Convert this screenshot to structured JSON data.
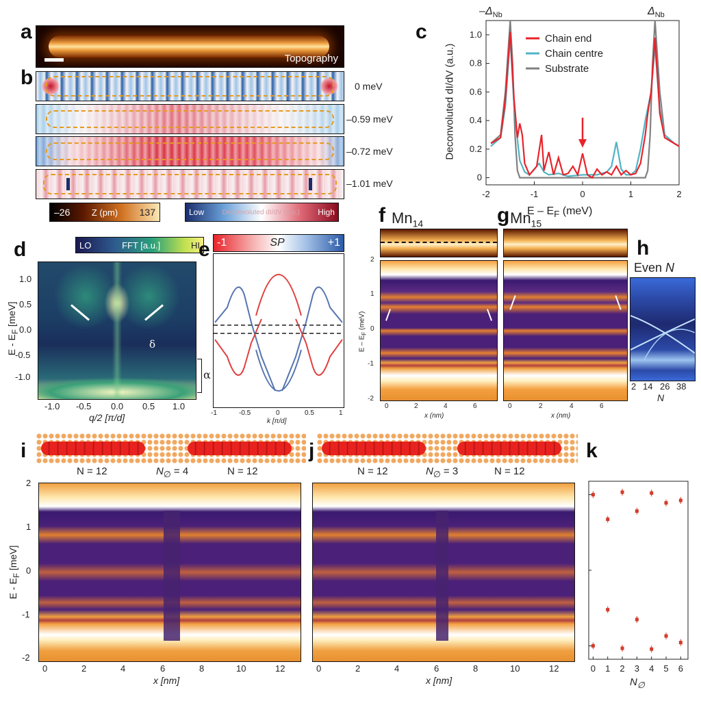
{
  "panels": {
    "a": {
      "label": "a",
      "caption": "Topography"
    },
    "b": {
      "label": "b",
      "energies": [
        "0 meV",
        "–0.59 meV",
        "–0.72 meV",
        "–1.01 meV"
      ]
    },
    "colorbars": {
      "z_min": "–26",
      "z_label": "Z (pm)",
      "z_max": "137",
      "didv_low": "Low",
      "didv_label": "Deconvoluted dI/dV (a.u.)",
      "didv_high": "High"
    },
    "c": {
      "label": "c",
      "ylabel": "Deconvoluted dI/dV (a.u.)",
      "xlabel": "E – E",
      "xlabel_sub": "F",
      "xlabel_unit": " (meV)",
      "gap_minus": "–Δ",
      "gap_plus": "Δ",
      "gap_sub": "Nb"
    },
    "d": {
      "label": "d",
      "cb_lo": "LO",
      "cb_mid": "FFT [a.u.]",
      "cb_hi": "HI",
      "ylabel": "E - E",
      "ylabel_sub": "F",
      "ylabel_unit": " [meV]",
      "xlabel": "q/2 [π/d]",
      "delta": "δ",
      "alpha": "α",
      "yticks": [
        "1.0",
        "0.5",
        "0.0",
        "-0.5",
        "-1.0"
      ],
      "xticks": [
        "-1.0",
        "-0.5",
        "0.0",
        "0.5",
        "1.0"
      ]
    },
    "e": {
      "label": "e",
      "cb_minus": "-1",
      "cb_mid": "SP",
      "cb_plus": "+1",
      "xlabel": "k [π/d]",
      "xticks": [
        "-1",
        "-0.5",
        "0",
        "0.5",
        "1"
      ]
    },
    "f": {
      "label": "f",
      "title": "Mn",
      "title_sub": "14",
      "ylabel": "E – E",
      "ylabel_sub": "F",
      "ylabel_unit": " (meV)",
      "xlabel": "x (nm)",
      "yticks": [
        "2",
        "1",
        "0",
        "-1",
        "-2"
      ],
      "xticks": [
        "0",
        "2",
        "4",
        "6"
      ]
    },
    "g": {
      "label": "g",
      "title": "Mn",
      "title_sub": "15",
      "xlabel": "x (nm)",
      "xticks": [
        "0",
        "2",
        "4",
        "6"
      ]
    },
    "h": {
      "label": "h",
      "title": "Even ",
      "title_n": "N",
      "xticks": [
        "2",
        "14",
        "26",
        "38"
      ],
      "xlabel": "N"
    },
    "i": {
      "label": "i",
      "n_left": "N = 12",
      "n_mid": "N",
      "n_mid_sub": "∅",
      "n_mid_val": " = 4",
      "n_right": "N = 12",
      "ylabel": "E - E",
      "ylabel_sub": "F",
      "ylabel_unit": " [meV]",
      "xlabel": "x [nm]",
      "yticks": [
        "2",
        "1",
        "0",
        "-1",
        "-2"
      ],
      "xticks": [
        "0",
        "2",
        "4",
        "6",
        "8",
        "10",
        "12"
      ]
    },
    "j": {
      "label": "j",
      "n_left": "N = 12",
      "n_mid": "N",
      "n_mid_sub": "∅",
      "n_mid_val": " = 3",
      "n_right": "N = 12",
      "xlabel": "x [nm]",
      "xticks": [
        "0",
        "2",
        "4",
        "6",
        "8",
        "10",
        "12"
      ]
    },
    "k": {
      "label": "k",
      "xlabel": "N",
      "xlabel_sub": "∅",
      "xticks": [
        "0",
        "1",
        "2",
        "3",
        "4",
        "5",
        "6"
      ]
    }
  },
  "chart_data": [
    {
      "type": "line",
      "title": "",
      "xlabel": "E – E_F (meV)",
      "ylabel": "Deconvoluted dI/dV (a.u.)",
      "xlim": [
        -2,
        2
      ],
      "ylim": [
        -0.05,
        1.1
      ],
      "xticks": [
        "-2",
        "-1",
        "0",
        "1",
        "2"
      ],
      "yticks": [
        "0",
        "0.2",
        "0.4",
        "0.6",
        "0.8",
        "1.0"
      ],
      "legend": "top-center",
      "series": [
        {
          "name": "Chain end",
          "color": "#e8232a",
          "x": [
            -1.9,
            -1.7,
            -1.6,
            -1.5,
            -1.42,
            -1.35,
            -1.3,
            -1.25,
            -1.2,
            -1.1,
            -0.95,
            -0.85,
            -0.8,
            -0.7,
            -0.6,
            -0.5,
            -0.4,
            -0.3,
            -0.2,
            -0.1,
            0,
            0.1,
            0.2,
            0.3,
            0.4,
            0.5,
            0.6,
            0.7,
            0.8,
            0.9,
            1.0,
            1.1,
            1.2,
            1.3,
            1.35,
            1.42,
            1.5,
            1.6,
            1.7,
            1.9,
            2.0
          ],
          "y": [
            0.24,
            0.28,
            0.55,
            1.02,
            0.55,
            0.28,
            0.38,
            0.3,
            0.1,
            0.02,
            0.08,
            0.3,
            0.05,
            0.18,
            0.02,
            0.14,
            0.02,
            0.03,
            0.08,
            0.02,
            0.17,
            0.02,
            0.0,
            0.06,
            0.02,
            0.04,
            0.02,
            0.08,
            0.02,
            0.05,
            0.02,
            0.03,
            0.1,
            0.3,
            0.45,
            0.6,
            0.98,
            0.45,
            0.28,
            0.24,
            0.22
          ]
        },
        {
          "name": "Chain centre",
          "color": "#4fb4c4",
          "x": [
            -1.9,
            -1.7,
            -1.6,
            -1.5,
            -1.42,
            -1.35,
            -1.3,
            -1.2,
            -1.1,
            -1.0,
            -0.9,
            -0.8,
            -0.7,
            -0.5,
            -0.3,
            0,
            0.3,
            0.5,
            0.6,
            0.7,
            0.8,
            0.9,
            1.0,
            1.1,
            1.2,
            1.3,
            1.42,
            1.5,
            1.6,
            1.7,
            1.9,
            2.0
          ],
          "y": [
            0.22,
            0.28,
            0.5,
            0.98,
            0.5,
            0.27,
            0.12,
            0.04,
            0.02,
            0.06,
            0.1,
            0.04,
            0.02,
            0.03,
            0.01,
            0.02,
            0.02,
            0.04,
            0.08,
            0.25,
            0.06,
            0.02,
            0.02,
            0.05,
            0.2,
            0.4,
            0.6,
            0.92,
            0.48,
            0.3,
            0.24,
            0.22
          ]
        },
        {
          "name": "Substrate",
          "color": "#808080",
          "x": [
            -1.9,
            -1.7,
            -1.6,
            -1.5,
            -1.45,
            -1.4,
            -1.35,
            -1.3,
            -1.2,
            -1.0,
            0,
            1.0,
            1.2,
            1.3,
            1.35,
            1.4,
            1.45,
            1.5,
            1.6,
            1.7,
            1.9,
            2.0
          ],
          "y": [
            0.24,
            0.3,
            0.6,
            1.1,
            0.8,
            0.3,
            0.05,
            0.0,
            0.0,
            0.0,
            0.0,
            0.0,
            0.0,
            0.0,
            0.05,
            0.3,
            0.8,
            1.1,
            0.6,
            0.3,
            0.24,
            0.22
          ]
        }
      ]
    },
    {
      "type": "scatter",
      "xlabel": "N_∅",
      "xlim": [
        -0.3,
        6.5
      ],
      "xticks": [
        "0",
        "1",
        "2",
        "3",
        "4",
        "5",
        "6"
      ],
      "series": [
        {
          "name": "upper",
          "color": "#d23c2b",
          "x": [
            0,
            1,
            2,
            3,
            4,
            5,
            6
          ],
          "y": [
            0.92,
            0.62,
            0.95,
            0.72,
            0.94,
            0.82,
            0.85
          ]
        },
        {
          "name": "lower",
          "color": "#d23c2b",
          "x": [
            0,
            1,
            2,
            3,
            4,
            5,
            6
          ],
          "y": [
            -0.92,
            -0.48,
            -0.95,
            -0.6,
            -0.96,
            -0.8,
            -0.88
          ]
        }
      ]
    }
  ]
}
